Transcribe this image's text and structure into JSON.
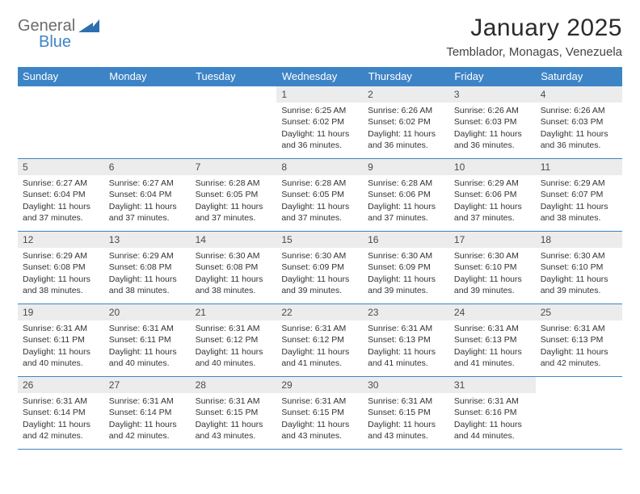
{
  "brand": {
    "word1": "General",
    "word2": "Blue",
    "word1_color": "#6c6c6c",
    "word2_color": "#3d84c6",
    "mark_color": "#2e6fb0"
  },
  "title": "January 2025",
  "location": "Temblador, Monagas, Venezuela",
  "header_bg": "#3d84c6",
  "header_fg": "#ffffff",
  "daynum_bg": "#ececec",
  "cell_border": "#3d84c6",
  "background": "#ffffff",
  "text_color": "#333333",
  "title_fontsize": 30,
  "location_fontsize": 15,
  "dayheader_fontsize": 13,
  "cell_fontsize": 10.5,
  "day_headers": [
    "Sunday",
    "Monday",
    "Tuesday",
    "Wednesday",
    "Thursday",
    "Friday",
    "Saturday"
  ],
  "weeks": [
    [
      {
        "n": "",
        "lines": []
      },
      {
        "n": "",
        "lines": []
      },
      {
        "n": "",
        "lines": []
      },
      {
        "n": "1",
        "lines": [
          "Sunrise: 6:25 AM",
          "Sunset: 6:02 PM",
          "Daylight: 11 hours and 36 minutes."
        ]
      },
      {
        "n": "2",
        "lines": [
          "Sunrise: 6:26 AM",
          "Sunset: 6:02 PM",
          "Daylight: 11 hours and 36 minutes."
        ]
      },
      {
        "n": "3",
        "lines": [
          "Sunrise: 6:26 AM",
          "Sunset: 6:03 PM",
          "Daylight: 11 hours and 36 minutes."
        ]
      },
      {
        "n": "4",
        "lines": [
          "Sunrise: 6:26 AM",
          "Sunset: 6:03 PM",
          "Daylight: 11 hours and 36 minutes."
        ]
      }
    ],
    [
      {
        "n": "5",
        "lines": [
          "Sunrise: 6:27 AM",
          "Sunset: 6:04 PM",
          "Daylight: 11 hours and 37 minutes."
        ]
      },
      {
        "n": "6",
        "lines": [
          "Sunrise: 6:27 AM",
          "Sunset: 6:04 PM",
          "Daylight: 11 hours and 37 minutes."
        ]
      },
      {
        "n": "7",
        "lines": [
          "Sunrise: 6:28 AM",
          "Sunset: 6:05 PM",
          "Daylight: 11 hours and 37 minutes."
        ]
      },
      {
        "n": "8",
        "lines": [
          "Sunrise: 6:28 AM",
          "Sunset: 6:05 PM",
          "Daylight: 11 hours and 37 minutes."
        ]
      },
      {
        "n": "9",
        "lines": [
          "Sunrise: 6:28 AM",
          "Sunset: 6:06 PM",
          "Daylight: 11 hours and 37 minutes."
        ]
      },
      {
        "n": "10",
        "lines": [
          "Sunrise: 6:29 AM",
          "Sunset: 6:06 PM",
          "Daylight: 11 hours and 37 minutes."
        ]
      },
      {
        "n": "11",
        "lines": [
          "Sunrise: 6:29 AM",
          "Sunset: 6:07 PM",
          "Daylight: 11 hours and 38 minutes."
        ]
      }
    ],
    [
      {
        "n": "12",
        "lines": [
          "Sunrise: 6:29 AM",
          "Sunset: 6:08 PM",
          "Daylight: 11 hours and 38 minutes."
        ]
      },
      {
        "n": "13",
        "lines": [
          "Sunrise: 6:29 AM",
          "Sunset: 6:08 PM",
          "Daylight: 11 hours and 38 minutes."
        ]
      },
      {
        "n": "14",
        "lines": [
          "Sunrise: 6:30 AM",
          "Sunset: 6:08 PM",
          "Daylight: 11 hours and 38 minutes."
        ]
      },
      {
        "n": "15",
        "lines": [
          "Sunrise: 6:30 AM",
          "Sunset: 6:09 PM",
          "Daylight: 11 hours and 39 minutes."
        ]
      },
      {
        "n": "16",
        "lines": [
          "Sunrise: 6:30 AM",
          "Sunset: 6:09 PM",
          "Daylight: 11 hours and 39 minutes."
        ]
      },
      {
        "n": "17",
        "lines": [
          "Sunrise: 6:30 AM",
          "Sunset: 6:10 PM",
          "Daylight: 11 hours and 39 minutes."
        ]
      },
      {
        "n": "18",
        "lines": [
          "Sunrise: 6:30 AM",
          "Sunset: 6:10 PM",
          "Daylight: 11 hours and 39 minutes."
        ]
      }
    ],
    [
      {
        "n": "19",
        "lines": [
          "Sunrise: 6:31 AM",
          "Sunset: 6:11 PM",
          "Daylight: 11 hours and 40 minutes."
        ]
      },
      {
        "n": "20",
        "lines": [
          "Sunrise: 6:31 AM",
          "Sunset: 6:11 PM",
          "Daylight: 11 hours and 40 minutes."
        ]
      },
      {
        "n": "21",
        "lines": [
          "Sunrise: 6:31 AM",
          "Sunset: 6:12 PM",
          "Daylight: 11 hours and 40 minutes."
        ]
      },
      {
        "n": "22",
        "lines": [
          "Sunrise: 6:31 AM",
          "Sunset: 6:12 PM",
          "Daylight: 11 hours and 41 minutes."
        ]
      },
      {
        "n": "23",
        "lines": [
          "Sunrise: 6:31 AM",
          "Sunset: 6:13 PM",
          "Daylight: 11 hours and 41 minutes."
        ]
      },
      {
        "n": "24",
        "lines": [
          "Sunrise: 6:31 AM",
          "Sunset: 6:13 PM",
          "Daylight: 11 hours and 41 minutes."
        ]
      },
      {
        "n": "25",
        "lines": [
          "Sunrise: 6:31 AM",
          "Sunset: 6:13 PM",
          "Daylight: 11 hours and 42 minutes."
        ]
      }
    ],
    [
      {
        "n": "26",
        "lines": [
          "Sunrise: 6:31 AM",
          "Sunset: 6:14 PM",
          "Daylight: 11 hours and 42 minutes."
        ]
      },
      {
        "n": "27",
        "lines": [
          "Sunrise: 6:31 AM",
          "Sunset: 6:14 PM",
          "Daylight: 11 hours and 42 minutes."
        ]
      },
      {
        "n": "28",
        "lines": [
          "Sunrise: 6:31 AM",
          "Sunset: 6:15 PM",
          "Daylight: 11 hours and 43 minutes."
        ]
      },
      {
        "n": "29",
        "lines": [
          "Sunrise: 6:31 AM",
          "Sunset: 6:15 PM",
          "Daylight: 11 hours and 43 minutes."
        ]
      },
      {
        "n": "30",
        "lines": [
          "Sunrise: 6:31 AM",
          "Sunset: 6:15 PM",
          "Daylight: 11 hours and 43 minutes."
        ]
      },
      {
        "n": "31",
        "lines": [
          "Sunrise: 6:31 AM",
          "Sunset: 6:16 PM",
          "Daylight: 11 hours and 44 minutes."
        ]
      },
      {
        "n": "",
        "lines": []
      }
    ]
  ]
}
